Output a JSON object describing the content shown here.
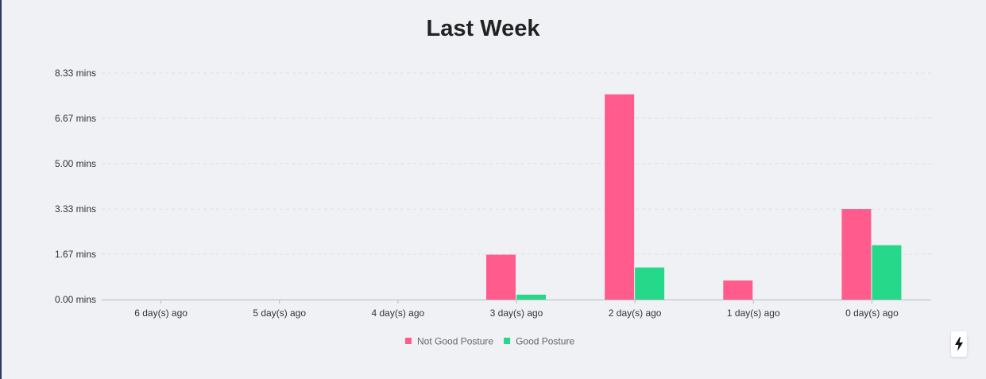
{
  "colors": {
    "not_good": "#ff5c8d",
    "good": "#26d98a",
    "grid": "#dcdde3",
    "axis": "#b9bac0"
  },
  "chart_data": {
    "type": "bar",
    "title": "Last Week",
    "categories": [
      "6 day(s) ago",
      "5 day(s) ago",
      "4 day(s) ago",
      "3 day(s) ago",
      "2 day(s) ago",
      "1 day(s) ago",
      "0 day(s) ago"
    ],
    "series": [
      {
        "name": "Not Good Posture",
        "values": [
          0,
          0,
          0,
          1.65,
          7.55,
          0.7,
          3.33
        ]
      },
      {
        "name": "Good Posture",
        "values": [
          0,
          0,
          0,
          0.18,
          1.18,
          0,
          2.0
        ]
      }
    ],
    "ylim": [
      0,
      8.33
    ],
    "yticks": [
      0,
      1.67,
      3.33,
      5.0,
      6.67,
      8.33
    ],
    "ytick_labels": [
      "0.00 mins",
      "1.67 mins",
      "3.33 mins",
      "5.00 mins",
      "6.67 mins",
      "8.33 mins"
    ],
    "grid": true,
    "legend": "bottom"
  },
  "icons": {
    "corner_button": "lightning-bolt-icon"
  }
}
